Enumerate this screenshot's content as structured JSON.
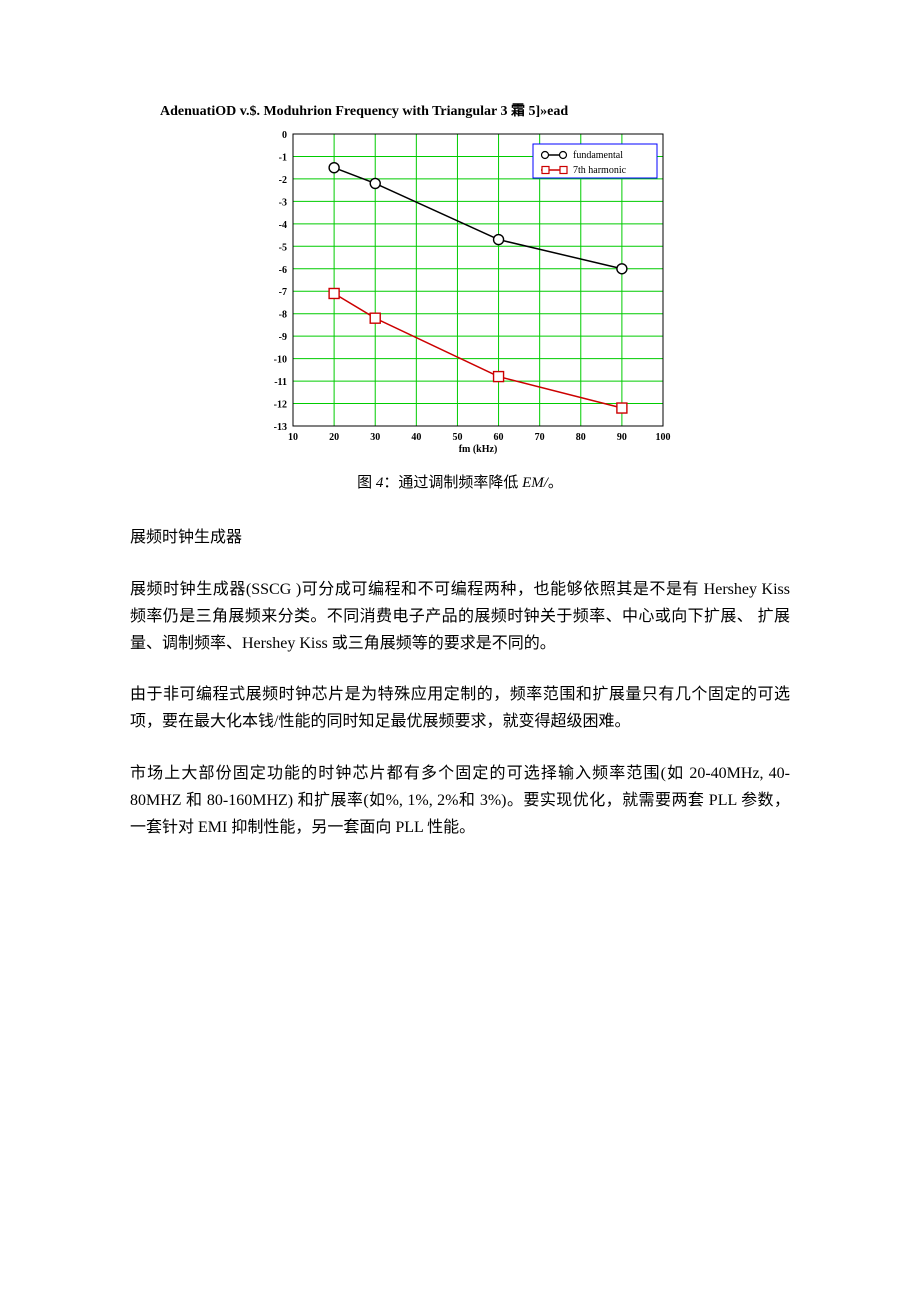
{
  "chart": {
    "title": "AdenuatiOD v.$. Moduhrion Frequency with Triangular 3 霜 5]»ead",
    "xlabel": "fm (kHz)",
    "xlim": [
      10,
      100
    ],
    "ylim": [
      -13,
      0
    ],
    "xticks": [
      10,
      20,
      30,
      40,
      50,
      60,
      70,
      80,
      90,
      100
    ],
    "yticks": [
      0,
      -1,
      -2,
      -3,
      -4,
      -5,
      -6,
      -7,
      -8,
      -9,
      -10,
      -11,
      -12,
      -13
    ],
    "grid_color": "#00cc00",
    "axis_color": "#000000",
    "background": "#ffffff",
    "tick_fontsize": 10,
    "label_fontsize": 10,
    "legend": {
      "items": [
        {
          "label": "fundamental",
          "marker": "circle",
          "color": "#000000"
        },
        {
          "label": "7th harmonic",
          "marker": "square",
          "color": "#cc0000"
        }
      ],
      "border_color": "#0000ff",
      "background": "#ffffff"
    },
    "series": [
      {
        "name": "fundamental",
        "color": "#000000",
        "marker": "circle",
        "marker_size": 5,
        "line_width": 1.5,
        "x": [
          20,
          30,
          60,
          90
        ],
        "y": [
          -1.5,
          -2.2,
          -4.7,
          -6.0
        ]
      },
      {
        "name": "7th-harmonic",
        "color": "#cc0000",
        "marker": "square",
        "marker_size": 5,
        "line_width": 1.5,
        "x": [
          20,
          30,
          60,
          90
        ],
        "y": [
          -7.1,
          -8.2,
          -10.8,
          -12.2
        ]
      }
    ]
  },
  "caption": {
    "prefix": "图 ",
    "num": "4",
    "mid": "：通过调制频率降低 ",
    "ital": "EM/",
    "suffix": "。"
  },
  "heading1": "展频时钟生成器",
  "para1": "展频时钟生成器(SSCG )可分成可编程和不可编程两种，也能够依照其是不是有 Hershey Kiss 频率仍是三角展频来分类。不同消费电子产品的展频时钟关于频率、中心或向下扩展、 扩展量、调制频率、Hershey Kiss 或三角展频等的要求是不同的。",
  "para2": "由于非可编程式展频时钟芯片是为特殊应用定制的，频率范围和扩展量只有几个固定的可选 项，要在最大化本钱/性能的同时知足最优展频要求，就变得超级困难。",
  "para3": "市场上大部份固定功能的时钟芯片都有多个固定的可选择输入频率范围(如 20-40MHz, 40-80MHZ 和 80-160MHZ) 和扩展率(如%, 1%, 2%和 3%)。要实现优化，就需要两套 PLL 参数，一套针对 EMI 抑制性能，另一套面向 PLL 性能。"
}
